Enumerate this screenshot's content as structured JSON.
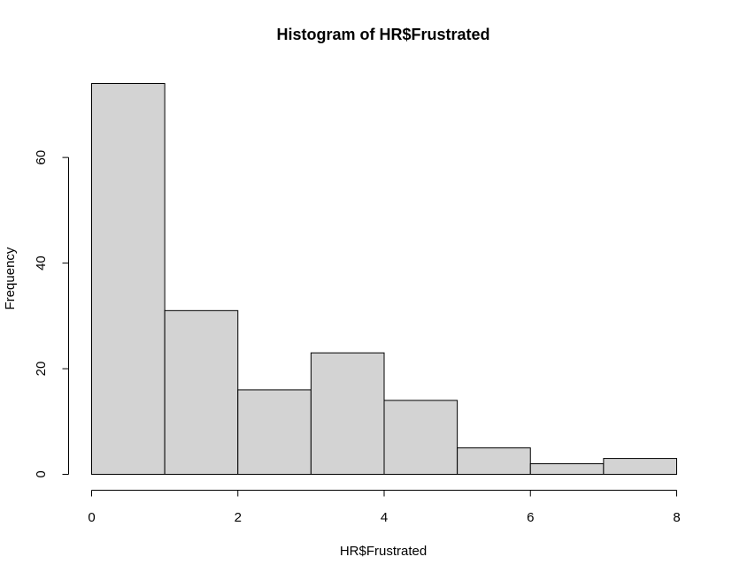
{
  "chart_data": {
    "type": "bar",
    "title": "Histogram of HR$Frustrated",
    "xlabel": "HR$Frustrated",
    "ylabel": "Frequency",
    "bins": [
      {
        "start": 0,
        "end": 1,
        "count": 74
      },
      {
        "start": 1,
        "end": 2,
        "count": 31
      },
      {
        "start": 2,
        "end": 3,
        "count": 16
      },
      {
        "start": 3,
        "end": 4,
        "count": 23
      },
      {
        "start": 4,
        "end": 5,
        "count": 14
      },
      {
        "start": 5,
        "end": 6,
        "count": 5
      },
      {
        "start": 6,
        "end": 7,
        "count": 2
      },
      {
        "start": 7,
        "end": 8,
        "count": 3
      }
    ],
    "xlim": [
      0,
      8
    ],
    "ylim": [
      0,
      74
    ],
    "x_ticks": [
      0,
      2,
      4,
      6,
      8
    ],
    "y_ticks": [
      0,
      20,
      40,
      60
    ],
    "colors": {
      "bar_fill": "#d3d3d3",
      "bar_stroke": "#000000"
    },
    "grid": false
  }
}
